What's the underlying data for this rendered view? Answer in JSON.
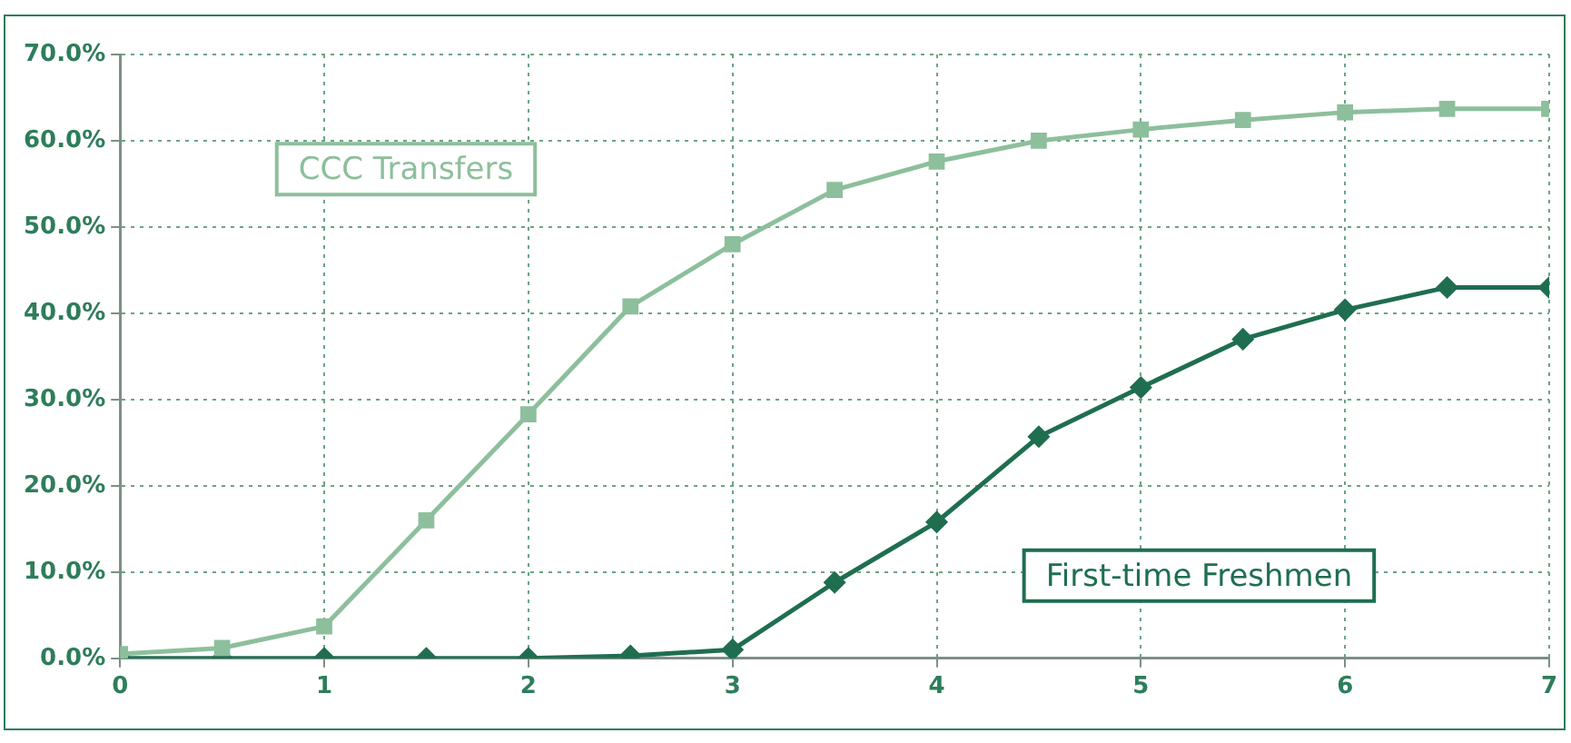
{
  "chart_data": {
    "type": "line",
    "x": [
      0,
      0.5,
      1,
      1.5,
      2,
      2.5,
      3,
      3.5,
      4,
      4.5,
      5,
      5.5,
      6,
      6.5,
      7
    ],
    "series": [
      {
        "name": "CCC Transfers",
        "color": "#8dbf9c",
        "marker": "square",
        "values": [
          0.5,
          1.2,
          3.7,
          16,
          28.3,
          40.8,
          48,
          54.3,
          57.6,
          60,
          61.3,
          62.4,
          63.3,
          63.7,
          63.7
        ]
      },
      {
        "name": "First-time Freshmen",
        "color": "#1f6e50",
        "marker": "diamond",
        "values": [
          0,
          0,
          0,
          0,
          0,
          0.3,
          1,
          8.8,
          15.8,
          25.7,
          31.4,
          37,
          40.4,
          43,
          43
        ]
      }
    ],
    "xlim": [
      0,
      7
    ],
    "xticks": [
      0,
      1,
      2,
      3,
      4,
      5,
      6,
      7
    ],
    "ylim": [
      0,
      70
    ],
    "yticks": [
      {
        "value": 0,
        "label": "0.0%"
      },
      {
        "value": 10,
        "label": "10.0%"
      },
      {
        "value": 20,
        "label": "20.0%"
      },
      {
        "value": 30,
        "label": "30.0%"
      },
      {
        "value": 40,
        "label": "40.0%"
      },
      {
        "value": 50,
        "label": "50.0%"
      },
      {
        "value": 60,
        "label": "60.0%"
      },
      {
        "value": 70,
        "label": "70.0%"
      }
    ],
    "grid": true,
    "legend": false,
    "line_style": "solid"
  }
}
